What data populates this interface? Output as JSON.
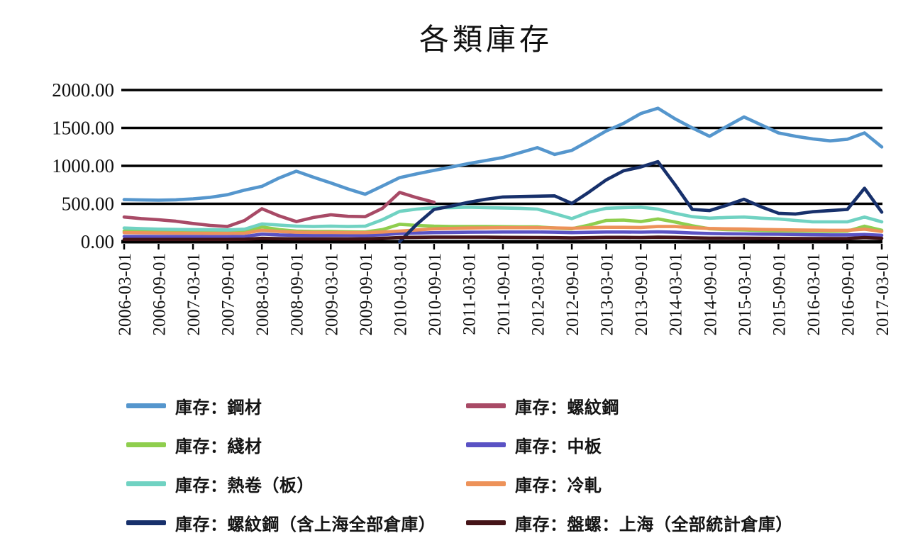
{
  "chart_data": {
    "type": "line",
    "title": "各類庫存",
    "legend_position": "bottom-two-columns",
    "grid": "horizontal",
    "grid_color": "#000000",
    "background_color": "#ffffff",
    "y_axis": {
      "min": 0,
      "max": 2000,
      "tick_values": [
        0,
        500,
        1000,
        1500,
        2000
      ],
      "tick_labels": [
        "0.00",
        "500.00",
        "1000.00",
        "1500.00",
        "2000.00"
      ]
    },
    "x_axis": {
      "tick_labels": [
        "2006-03-01",
        "2006-09-01",
        "2007-03-01",
        "2007-09-01",
        "2008-03-01",
        "2008-09-01",
        "2009-03-01",
        "2009-09-01",
        "2010-03-01",
        "2010-09-01",
        "2011-03-01",
        "2011-09-01",
        "2012-03-01",
        "2012-09-01",
        "2013-03-01",
        "2013-09-01",
        "2014-03-01",
        "2014-09-01",
        "2015-03-01",
        "2015-09-01",
        "2016-03-01",
        "2016-09-01",
        "2017-03-01"
      ],
      "points_per_label_interval": 2,
      "label_rotation_degrees": -90
    },
    "series": [
      {
        "name": "庫存：鋼材",
        "key": "steel",
        "color": "#5596cd",
        "values": [
          555,
          550,
          548,
          552,
          565,
          585,
          620,
          680,
          730,
          840,
          930,
          850,
          775,
          695,
          625,
          735,
          845,
          895,
          940,
          985,
          1030,
          1070,
          1110,
          1175,
          1240,
          1150,
          1205,
          1330,
          1460,
          1560,
          1690,
          1760,
          1620,
          1500,
          1390,
          1520,
          1645,
          1540,
          1435,
          1390,
          1355,
          1330,
          1350,
          1435,
          1250
        ]
      },
      {
        "name": "庫存：螺紋鋼",
        "key": "rebar",
        "color": "#a84a66",
        "values": [
          325,
          305,
          290,
          270,
          240,
          215,
          200,
          280,
          435,
          340,
          265,
          320,
          355,
          335,
          330,
          440,
          650,
          580,
          520,
          null,
          null,
          null,
          null,
          null,
          null,
          null,
          null,
          null,
          null,
          null,
          null,
          null,
          null,
          null,
          null,
          null,
          null,
          null,
          null,
          null,
          null,
          null,
          null,
          null,
          null
        ]
      },
      {
        "name": "庫存：綫材",
        "key": "wire-rod",
        "color": "#8fce4e",
        "values": [
          140,
          135,
          130,
          130,
          128,
          126,
          125,
          130,
          195,
          160,
          140,
          135,
          135,
          130,
          128,
          160,
          230,
          215,
          205,
          200,
          200,
          200,
          198,
          195,
          195,
          180,
          170,
          220,
          280,
          285,
          265,
          300,
          260,
          210,
          170,
          160,
          155,
          148,
          142,
          140,
          138,
          136,
          138,
          205,
          150
        ]
      },
      {
        "name": "庫存：中板",
        "key": "medium-plate",
        "color": "#5a52c4",
        "values": [
          70,
          70,
          68,
          68,
          68,
          66,
          66,
          70,
          100,
          90,
          85,
          82,
          84,
          83,
          82,
          92,
          108,
          114,
          120,
          122,
          125,
          126,
          128,
          128,
          128,
          125,
          120,
          124,
          128,
          128,
          126,
          130,
          125,
          115,
          108,
          105,
          103,
          100,
          98,
          95,
          92,
          90,
          90,
          95,
          85
        ]
      },
      {
        "name": "庫存：熱卷（板）",
        "key": "hot-rolled-coil",
        "color": "#70d2c2",
        "values": [
          180,
          172,
          165,
          162,
          160,
          158,
          155,
          165,
          235,
          220,
          205,
          200,
          205,
          200,
          205,
          290,
          400,
          430,
          450,
          450,
          455,
          450,
          445,
          440,
          430,
          370,
          305,
          390,
          440,
          450,
          455,
          430,
          375,
          330,
          310,
          320,
          325,
          310,
          300,
          280,
          262,
          262,
          262,
          325,
          262
        ]
      },
      {
        "name": "庫存：冷軋",
        "key": "cold-rolled",
        "color": "#ed9259",
        "values": [
          120,
          118,
          115,
          113,
          112,
          110,
          110,
          112,
          150,
          135,
          125,
          122,
          122,
          120,
          120,
          128,
          140,
          155,
          170,
          175,
          180,
          182,
          185,
          185,
          185,
          182,
          178,
          185,
          190,
          190,
          188,
          200,
          200,
          185,
          175,
          170,
          168,
          162,
          158,
          155,
          152,
          150,
          150,
          165,
          135
        ]
      },
      {
        "name": "庫存：螺紋鋼（含上海全部倉庫）",
        "key": "rebar-shanghai-all",
        "color": "#17306b",
        "values": [
          null,
          null,
          null,
          null,
          null,
          null,
          null,
          null,
          null,
          null,
          null,
          null,
          null,
          null,
          null,
          null,
          0,
          230,
          425,
          470,
          520,
          560,
          590,
          595,
          600,
          605,
          505,
          655,
          815,
          935,
          985,
          1055,
          750,
          425,
          410,
          480,
          560,
          460,
          375,
          365,
          395,
          410,
          425,
          705,
          390
        ]
      },
      {
        "name": "庫存：盤螺：上海（全部統計倉庫）",
        "key": "coiled-rebar-shanghai",
        "color": "#451418",
        "values": [
          30,
          30,
          30,
          30,
          30,
          30,
          30,
          32,
          45,
          40,
          38,
          37,
          38,
          37,
          38,
          45,
          55,
          58,
          60,
          60,
          60,
          60,
          58,
          57,
          56,
          54,
          50,
          54,
          58,
          58,
          56,
          60,
          58,
          52,
          48,
          47,
          46,
          45,
          44,
          43,
          42,
          42,
          43,
          55,
          45
        ]
      }
    ]
  }
}
